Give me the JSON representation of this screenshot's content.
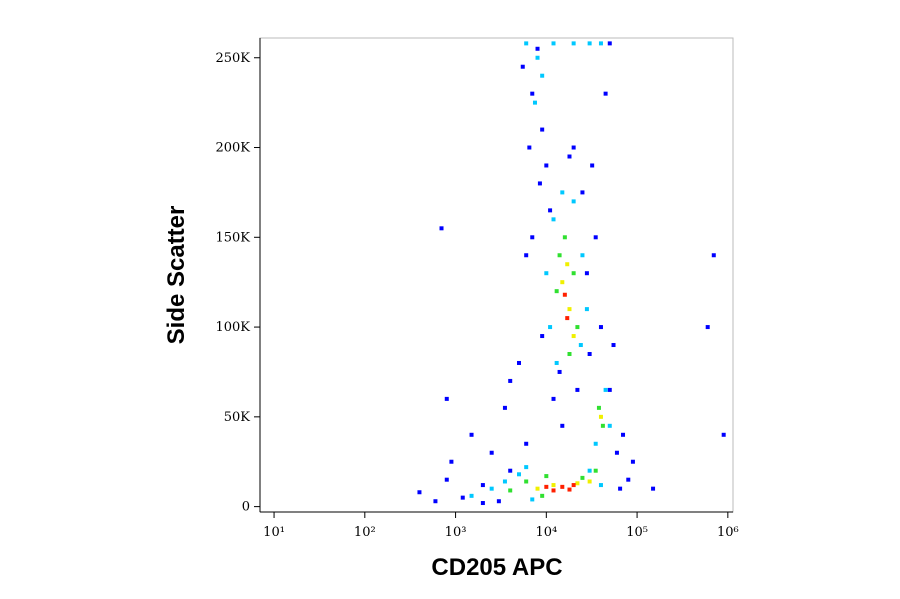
{
  "chart_data": {
    "type": "scatter",
    "x_label": "CD205 APC",
    "y_label": "Side Scatter",
    "xscale": "log",
    "xlim": [
      7,
      1140000
    ],
    "xticks": [
      {
        "value": 10,
        "label": "10¹"
      },
      {
        "value": 100,
        "label": "10²"
      },
      {
        "value": 1000,
        "label": "10³"
      },
      {
        "value": 10000,
        "label": "10⁴"
      },
      {
        "value": 100000,
        "label": "10⁵"
      },
      {
        "value": 1000000,
        "label": "10⁶"
      }
    ],
    "ylim": [
      -3000,
      261000
    ],
    "yticks": [
      0,
      {
        "value": 50000,
        "label": "50K"
      },
      {
        "value": 100000,
        "label": "100K"
      },
      {
        "value": 150000,
        "label": "150K"
      },
      {
        "value": 200000,
        "label": "200K"
      },
      {
        "value": 250000,
        "label": "250K"
      }
    ],
    "series": [
      {
        "color": "#0000ff",
        "x": [
          400,
          600,
          800,
          900,
          1200,
          1500,
          2000,
          2500,
          3000,
          3500,
          4000,
          5000,
          6000,
          7000,
          7000,
          8000,
          9000,
          10000,
          12000,
          5500,
          6500,
          8500,
          15000,
          20000,
          25000,
          30000,
          35000,
          40000,
          45000,
          50000,
          60000,
          70000,
          80000,
          90000,
          150000,
          800,
          2000,
          4000,
          6000,
          9000,
          11000,
          14000,
          18000,
          22000,
          28000,
          32000,
          55000,
          65000,
          700,
          600000,
          700000,
          900000,
          50000
        ],
        "values": [
          8000,
          3000,
          15000,
          25000,
          5000,
          40000,
          12000,
          30000,
          3000,
          55000,
          20000,
          80000,
          35000,
          150000,
          230000,
          255000,
          210000,
          190000,
          60000,
          245000,
          200000,
          180000,
          45000,
          200000,
          175000,
          85000,
          150000,
          100000,
          230000,
          65000,
          30000,
          40000,
          15000,
          25000,
          10000,
          60000,
          2000,
          70000,
          140000,
          95000,
          165000,
          75000,
          195000,
          65000,
          130000,
          190000,
          90000,
          10000,
          155000,
          100000,
          140000,
          40000,
          258000
        ]
      },
      {
        "color": "#00c8ff",
        "x": [
          1500,
          2500,
          3500,
          5000,
          7000,
          8000,
          9000,
          7500,
          10000,
          12000,
          13000,
          20000,
          25000,
          24000,
          30000,
          35000,
          45000,
          50000,
          40000,
          6000,
          15000,
          11000,
          28000,
          12000,
          20000,
          30000,
          40000,
          6000
        ],
        "values": [
          6000,
          10000,
          14000,
          18000,
          4000,
          250000,
          240000,
          225000,
          130000,
          160000,
          80000,
          170000,
          140000,
          90000,
          20000,
          35000,
          65000,
          45000,
          12000,
          22000,
          175000,
          100000,
          110000,
          258000,
          258000,
          258000,
          258000,
          258000
        ]
      },
      {
        "color": "#30e030",
        "x": [
          4000,
          6000,
          9000,
          14000,
          16000,
          18000,
          20000,
          22000,
          13000,
          38000,
          42000,
          35000,
          25000,
          10000
        ],
        "values": [
          9000,
          14000,
          6000,
          140000,
          150000,
          85000,
          130000,
          100000,
          120000,
          55000,
          45000,
          20000,
          16000,
          17000
        ]
      },
      {
        "color": "#f0f000",
        "x": [
          15000,
          18000,
          17000,
          20000,
          12000,
          22000,
          8000,
          30000,
          40000
        ],
        "values": [
          125000,
          110000,
          135000,
          95000,
          12000,
          13000,
          10000,
          14000,
          50000
        ]
      },
      {
        "color": "#ff2000",
        "x": [
          12000,
          15000,
          18000,
          10000,
          20000,
          17000,
          16000
        ],
        "values": [
          9000,
          11000,
          9500,
          11000,
          12000,
          105000,
          118000
        ]
      }
    ]
  }
}
